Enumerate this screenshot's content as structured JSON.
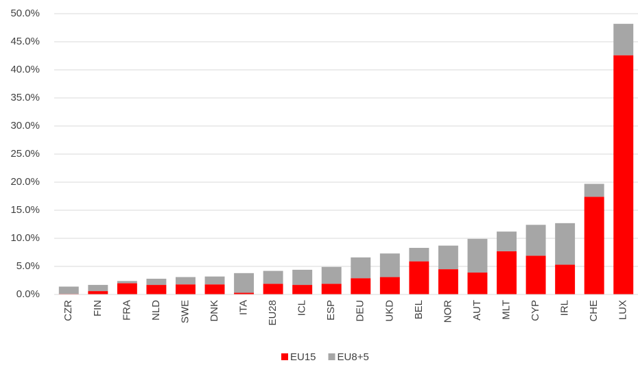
{
  "chart_data": {
    "type": "stacked_bar",
    "categories": [
      "CZR",
      "FIN",
      "FRA",
      "NLD",
      "SWE",
      "DNK",
      "ITA",
      "EU28",
      "ICL",
      "ESP",
      "DEU",
      "UKD",
      "BEL",
      "NOR",
      "AUT",
      "MLT",
      "CYP",
      "IRL",
      "CHE",
      "LUX"
    ],
    "series": [
      {
        "name": "EU15",
        "color": "#ff0000",
        "values": [
          0.1,
          0.6,
          2.0,
          1.7,
          1.8,
          1.8,
          0.3,
          1.9,
          1.7,
          1.9,
          2.9,
          3.1,
          5.9,
          4.5,
          3.9,
          7.7,
          6.9,
          5.3,
          17.4,
          42.6
        ]
      },
      {
        "name": "EU8+5",
        "color": "#a6a6a6",
        "values": [
          1.3,
          1.1,
          0.4,
          1.1,
          1.3,
          1.4,
          3.5,
          2.3,
          2.7,
          3.0,
          3.7,
          4.2,
          2.4,
          4.2,
          6.0,
          3.5,
          5.5,
          7.4,
          2.3,
          5.6
        ]
      }
    ],
    "ylim": [
      0,
      50
    ],
    "yticks": [
      {
        "value": 0,
        "label": "0.0%"
      },
      {
        "value": 5,
        "label": "5.0%"
      },
      {
        "value": 10,
        "label": "10.0%"
      },
      {
        "value": 15,
        "label": "15.0%"
      },
      {
        "value": 20,
        "label": "20.0%"
      },
      {
        "value": 25,
        "label": "25.0%"
      },
      {
        "value": 30,
        "label": "30.0%"
      },
      {
        "value": 35,
        "label": "35.0%"
      },
      {
        "value": 40,
        "label": "40.0%"
      },
      {
        "value": 45,
        "label": "45.0%"
      },
      {
        "value": 50,
        "label": "50.0%"
      }
    ],
    "grid": true,
    "legend": "bottom"
  }
}
